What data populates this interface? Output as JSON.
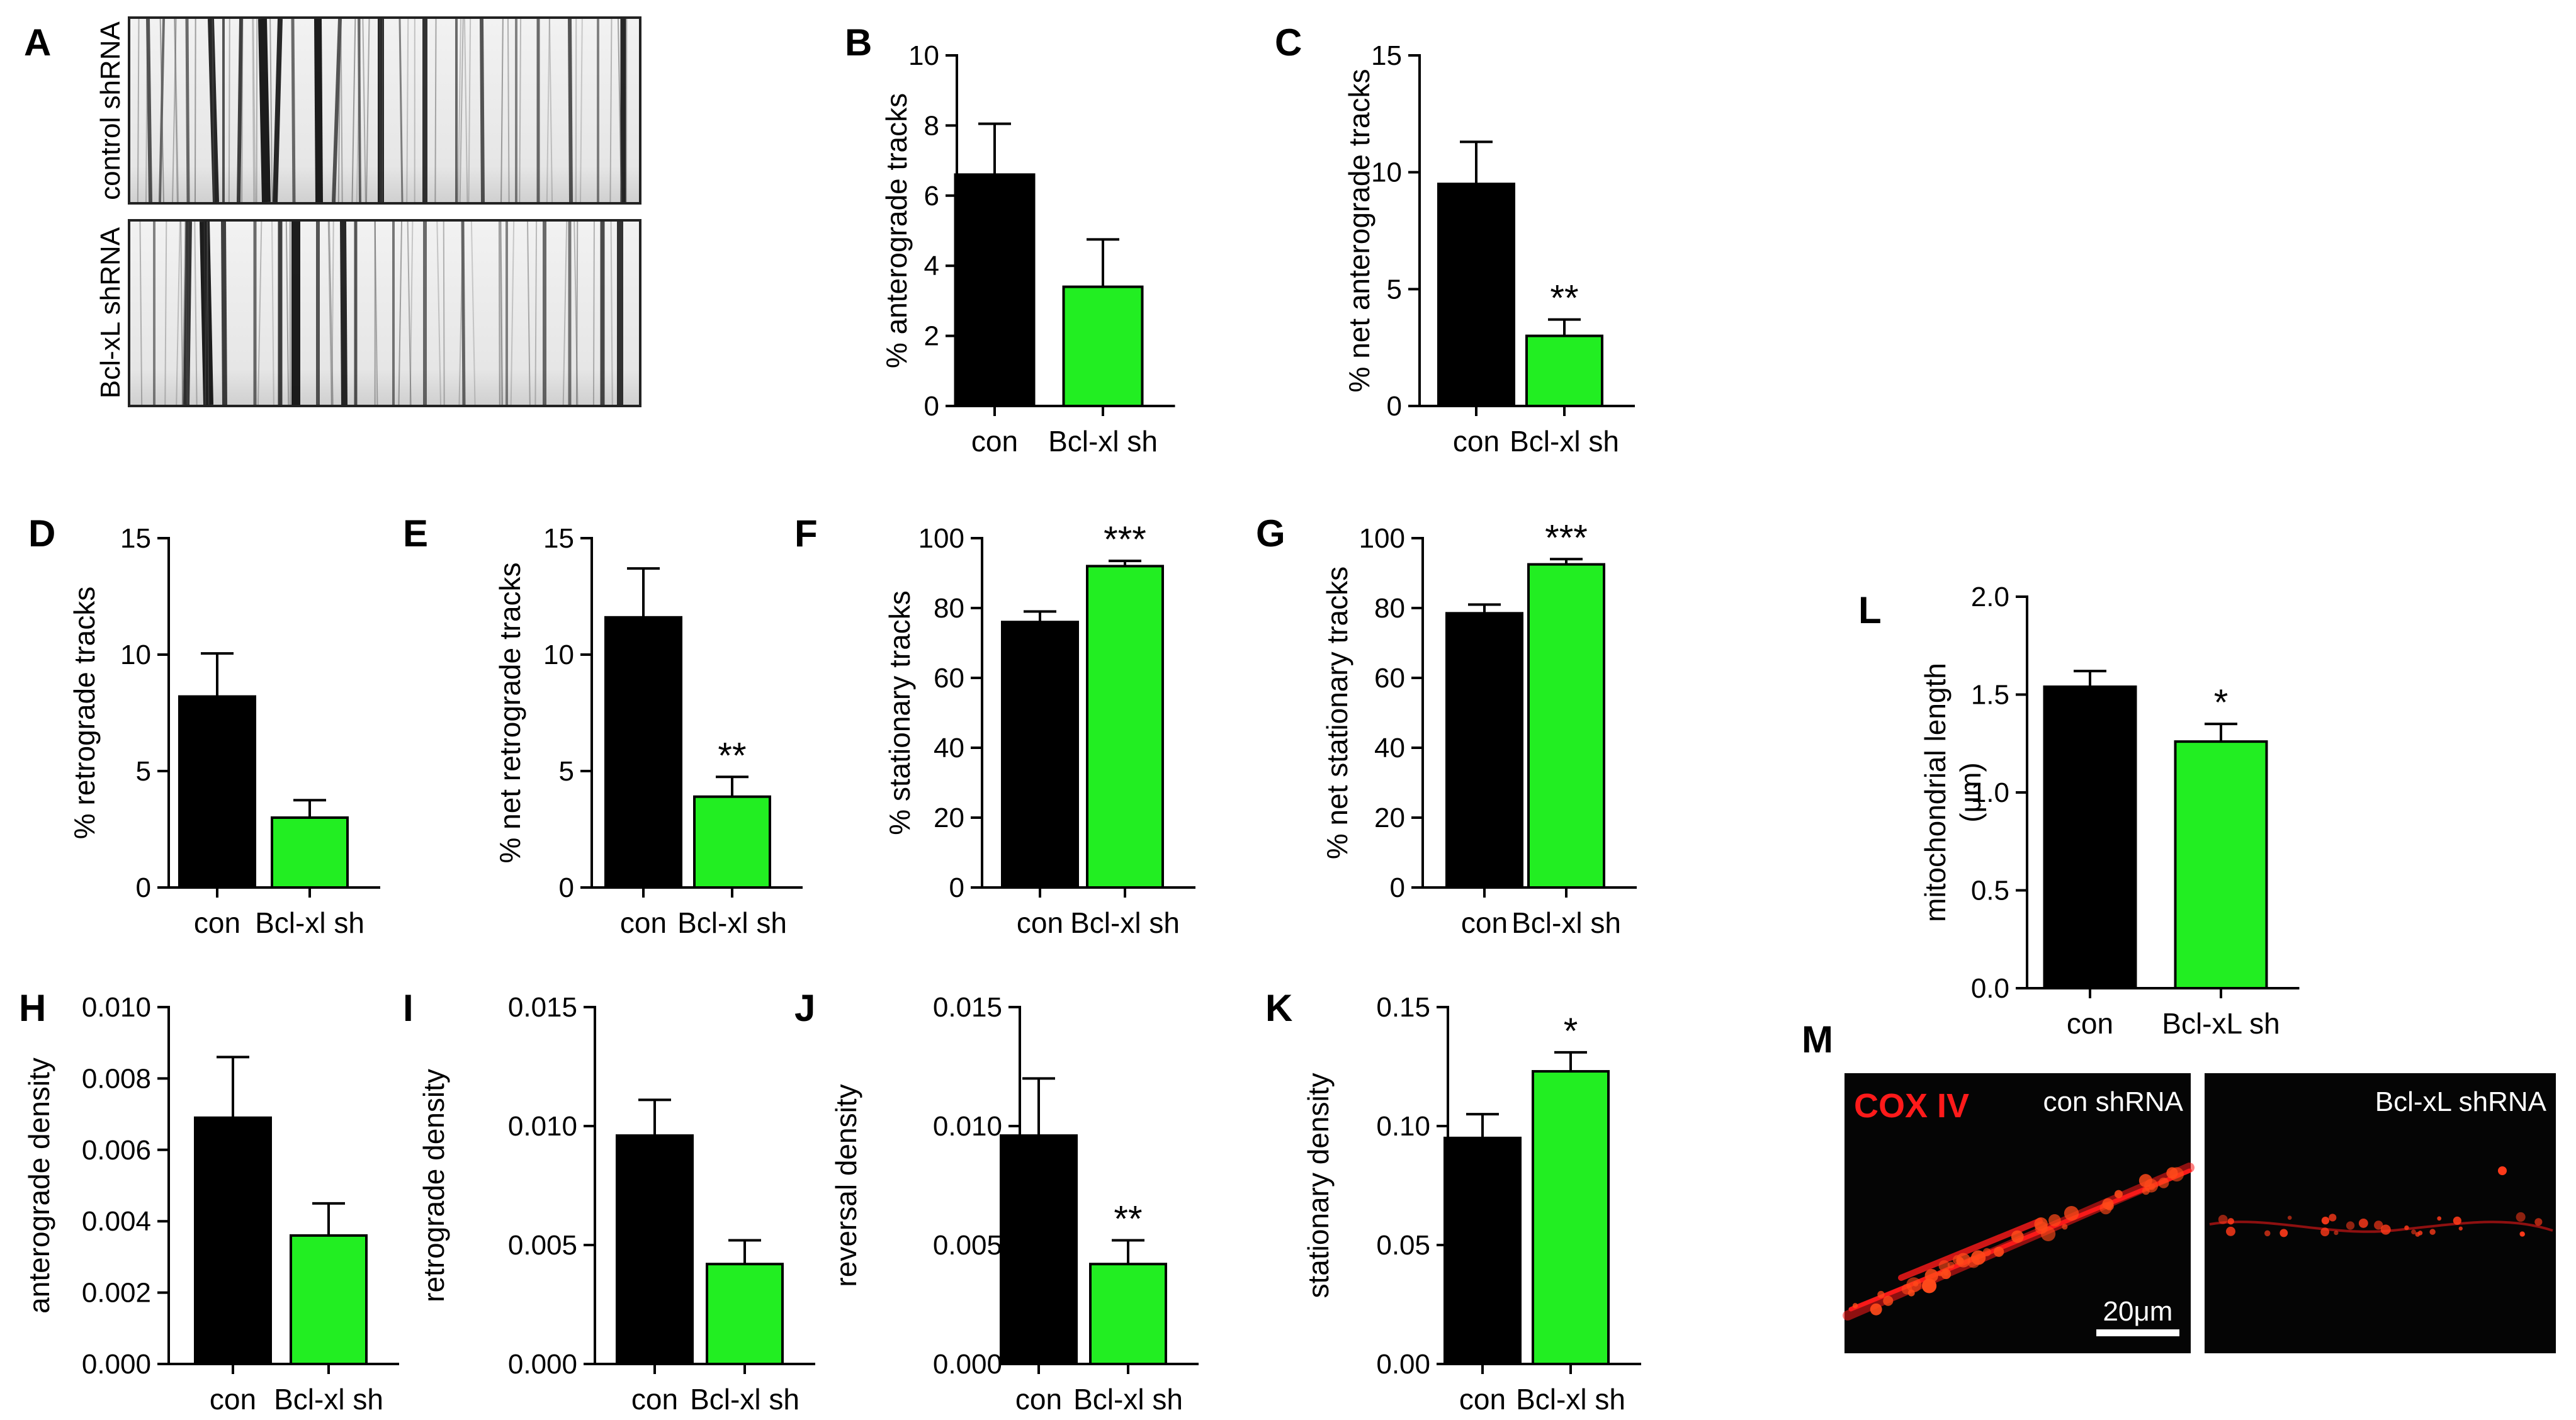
{
  "colors": {
    "control": "#000000",
    "knockdown": "#22ee22"
  },
  "panelA": {
    "letter": "A",
    "images": [
      {
        "label": "control shRNA"
      },
      {
        "label": "Bcl-xL shRNA"
      }
    ]
  },
  "panelM": {
    "letter": "M",
    "stain": "COX IV",
    "stain_color": "#ff1a1a",
    "images": [
      {
        "label": "con shRNA"
      },
      {
        "label": "Bcl-xL shRNA"
      }
    ],
    "scalebar": "20μm"
  },
  "chart_data": [
    {
      "id": "B",
      "type": "bar",
      "categories": [
        "con",
        "Bcl-xl sh"
      ],
      "values": [
        6.6,
        3.4
      ],
      "errors": [
        1.45,
        1.35
      ],
      "significance": [
        "",
        ""
      ],
      "ylabel": "%  anterograde tracks",
      "ylim": [
        0,
        10
      ],
      "yticks": [
        "0",
        "2",
        "4",
        "6",
        "8",
        "10"
      ]
    },
    {
      "id": "C",
      "type": "bar",
      "categories": [
        "con",
        "Bcl-xl sh"
      ],
      "values": [
        9.5,
        3.0
      ],
      "errors": [
        1.8,
        0.7
      ],
      "significance": [
        "",
        "**"
      ],
      "ylabel": "% net anterograde tracks",
      "ylim": [
        0,
        15
      ],
      "yticks": [
        "0",
        "5",
        "10",
        "15"
      ]
    },
    {
      "id": "D",
      "type": "bar",
      "categories": [
        "con",
        "Bcl-xl sh"
      ],
      "values": [
        8.2,
        3.0
      ],
      "errors": [
        1.85,
        0.75
      ],
      "significance": [
        "",
        ""
      ],
      "ylabel": "%  retrograde tracks",
      "ylim": [
        0,
        15
      ],
      "yticks": [
        "0",
        "5",
        "10",
        "15"
      ]
    },
    {
      "id": "E",
      "type": "bar",
      "categories": [
        "con",
        "Bcl-xl sh"
      ],
      "values": [
        11.6,
        3.9
      ],
      "errors": [
        2.1,
        0.85
      ],
      "significance": [
        "",
        "**"
      ],
      "ylabel": "% net retrograde tracks",
      "ylim": [
        0,
        15
      ],
      "yticks": [
        "0",
        "5",
        "10",
        "15"
      ]
    },
    {
      "id": "F",
      "type": "bar",
      "categories": [
        "con",
        "Bcl-xl sh"
      ],
      "values": [
        76,
        92
      ],
      "errors": [
        3,
        1.5
      ],
      "significance": [
        "",
        "***"
      ],
      "ylabel": "%  stationary tracks",
      "ylim": [
        0,
        100
      ],
      "yticks": [
        "0",
        "20",
        "40",
        "60",
        "80",
        "100"
      ]
    },
    {
      "id": "G",
      "type": "bar",
      "categories": [
        "con",
        "Bcl-xl sh"
      ],
      "values": [
        78.5,
        92.5
      ],
      "errors": [
        2.5,
        1.5
      ],
      "significance": [
        "",
        "***"
      ],
      "ylabel": "% net stationary tracks",
      "ylim": [
        0,
        100
      ],
      "yticks": [
        "0",
        "20",
        "40",
        "60",
        "80",
        "100"
      ]
    },
    {
      "id": "H",
      "type": "bar",
      "categories": [
        "con",
        "Bcl-xl sh"
      ],
      "values": [
        0.0069,
        0.0036
      ],
      "errors": [
        0.0017,
        0.0009
      ],
      "significance": [
        "",
        ""
      ],
      "ylabel": "anterograde density",
      "ylim": [
        0,
        0.01
      ],
      "yticks": [
        "0.000",
        "0.002",
        "0.004",
        "0.006",
        "0.008",
        "0.010"
      ]
    },
    {
      "id": "I",
      "type": "bar",
      "categories": [
        "con",
        "Bcl-xl sh"
      ],
      "values": [
        0.0096,
        0.0042
      ],
      "errors": [
        0.0015,
        0.001
      ],
      "significance": [
        "",
        ""
      ],
      "ylabel": "retrograde density",
      "ylim": [
        0,
        0.015
      ],
      "yticks": [
        "0.000",
        "0.005",
        "0.010",
        "0.015"
      ]
    },
    {
      "id": "J",
      "type": "bar",
      "categories": [
        "con",
        "Bcl-xl sh"
      ],
      "values": [
        0.0096,
        0.0042
      ],
      "errors": [
        0.0024,
        0.001
      ],
      "significance": [
        "",
        "**"
      ],
      "ylabel": "reversal density",
      "ylim": [
        0,
        0.015
      ],
      "yticks": [
        "0.000",
        "0.005",
        "0.010",
        "0.015"
      ]
    },
    {
      "id": "K",
      "type": "bar",
      "categories": [
        "con",
        "Bcl-xl sh"
      ],
      "values": [
        0.095,
        0.123
      ],
      "errors": [
        0.01,
        0.008
      ],
      "significance": [
        "",
        "*"
      ],
      "ylabel": "stationary density",
      "ylim": [
        0,
        0.15
      ],
      "yticks": [
        "0.00",
        "0.05",
        "0.10",
        "0.15"
      ]
    },
    {
      "id": "L",
      "type": "bar",
      "categories": [
        "con",
        "Bcl-xL sh"
      ],
      "values": [
        1.54,
        1.26
      ],
      "errors": [
        0.08,
        0.09
      ],
      "significance": [
        "",
        "*"
      ],
      "ylabel": "mitochondrial length",
      "ylabel2": "(μm)",
      "ylim": [
        0,
        2
      ],
      "yticks": [
        "0.0",
        "0.5",
        "1.0",
        "1.5",
        "2.0"
      ]
    }
  ]
}
